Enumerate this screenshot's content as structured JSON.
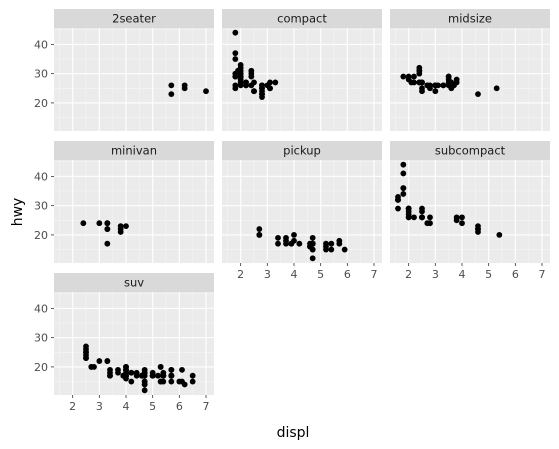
{
  "chart_data": {
    "type": "scatter",
    "facet_by": "class",
    "xlabel": "displ",
    "ylabel": "hwy",
    "xlim": [
      1.3,
      7.3
    ],
    "ylim": [
      10.4,
      45.6
    ],
    "x_ticks": [
      2,
      3,
      4,
      5,
      6,
      7
    ],
    "y_ticks": [
      20,
      30,
      40
    ],
    "grid": true,
    "panels": [
      {
        "label": "2seater",
        "points": [
          [
            5.7,
            26
          ],
          [
            5.7,
            23
          ],
          [
            6.2,
            26
          ],
          [
            6.2,
            25
          ],
          [
            7.0,
            24
          ]
        ]
      },
      {
        "label": "compact",
        "points": [
          [
            1.8,
            29
          ],
          [
            1.8,
            29
          ],
          [
            2.0,
            31
          ],
          [
            2.0,
            30
          ],
          [
            2.8,
            26
          ],
          [
            2.8,
            26
          ],
          [
            3.1,
            27
          ],
          [
            1.8,
            26
          ],
          [
            1.8,
            25
          ],
          [
            2.0,
            28
          ],
          [
            2.0,
            27
          ],
          [
            2.8,
            25
          ],
          [
            2.8,
            25
          ],
          [
            3.1,
            25
          ],
          [
            3.1,
            25
          ],
          [
            2.2,
            26
          ],
          [
            2.2,
            27
          ],
          [
            2.4,
            30
          ],
          [
            2.4,
            31
          ],
          [
            3.0,
            26
          ],
          [
            3.3,
            27
          ],
          [
            1.8,
            44
          ],
          [
            1.8,
            35
          ],
          [
            1.8,
            37
          ],
          [
            2.0,
            29
          ],
          [
            2.0,
            29
          ],
          [
            2.0,
            29
          ],
          [
            2.0,
            28
          ],
          [
            2.5,
            24
          ],
          [
            2.5,
            24
          ],
          [
            2.8,
            23
          ],
          [
            2.8,
            23
          ],
          [
            2.8,
            24
          ],
          [
            2.2,
            26
          ],
          [
            2.4,
            26
          ],
          [
            1.8,
            30
          ],
          [
            2.0,
            33
          ],
          [
            2.0,
            32
          ],
          [
            2.4,
            29
          ],
          [
            1.9,
            31
          ],
          [
            2.2,
            27
          ],
          [
            2.0,
            26
          ],
          [
            2.0,
            30
          ],
          [
            2.8,
            22
          ],
          [
            2.5,
            27
          ]
        ]
      },
      {
        "label": "midsize",
        "points": [
          [
            2.4,
            27
          ],
          [
            2.4,
            30
          ],
          [
            3.1,
            26
          ],
          [
            3.5,
            29
          ],
          [
            3.6,
            26
          ],
          [
            2.4,
            31
          ],
          [
            3.0,
            26
          ],
          [
            3.3,
            26
          ],
          [
            2.5,
            27
          ],
          [
            2.5,
            27
          ],
          [
            3.5,
            27
          ],
          [
            1.8,
            29
          ],
          [
            2.0,
            28
          ],
          [
            2.8,
            25
          ],
          [
            3.6,
            25
          ],
          [
            3.6,
            27
          ],
          [
            2.2,
            29
          ],
          [
            2.4,
            27
          ],
          [
            2.7,
            26
          ],
          [
            2.7,
            26
          ],
          [
            3.5,
            29
          ],
          [
            4.6,
            23
          ],
          [
            5.3,
            25
          ],
          [
            3.0,
            24
          ],
          [
            3.0,
            26
          ],
          [
            3.5,
            28
          ],
          [
            3.5,
            26
          ],
          [
            2.2,
            27
          ],
          [
            2.5,
            25
          ],
          [
            2.4,
            32
          ],
          [
            2.4,
            31
          ],
          [
            3.3,
            26
          ],
          [
            2.5,
            24
          ],
          [
            3.0,
            26
          ],
          [
            3.7,
            26
          ],
          [
            3.0,
            26
          ],
          [
            3.8,
            27
          ],
          [
            3.8,
            28
          ],
          [
            2.0,
            29
          ],
          [
            2.1,
            27
          ],
          [
            2.8,
            26
          ]
        ]
      },
      {
        "label": "minivan",
        "points": [
          [
            2.4,
            24
          ],
          [
            3.0,
            24
          ],
          [
            3.3,
            22
          ],
          [
            3.3,
            22
          ],
          [
            3.3,
            24
          ],
          [
            3.3,
            24
          ],
          [
            3.3,
            17
          ],
          [
            3.8,
            22
          ],
          [
            3.8,
            21
          ],
          [
            3.8,
            23
          ],
          [
            4.0,
            23
          ]
        ]
      },
      {
        "label": "pickup",
        "points": [
          [
            2.7,
            20
          ],
          [
            2.7,
            22
          ],
          [
            3.4,
            17
          ],
          [
            3.4,
            19
          ],
          [
            3.7,
            18
          ],
          [
            3.7,
            17
          ],
          [
            3.9,
            17
          ],
          [
            4.7,
            17
          ],
          [
            4.7,
            12
          ],
          [
            4.7,
            15
          ],
          [
            5.2,
            16
          ],
          [
            5.2,
            15
          ],
          [
            3.9,
            17
          ],
          [
            4.7,
            17
          ],
          [
            4.7,
            15
          ],
          [
            4.7,
            17
          ],
          [
            5.2,
            17
          ],
          [
            5.7,
            17
          ],
          [
            5.9,
            15
          ],
          [
            4.2,
            17
          ],
          [
            4.6,
            17
          ],
          [
            4.6,
            16
          ],
          [
            4.6,
            16
          ],
          [
            5.4,
            15
          ],
          [
            5.4,
            17
          ],
          [
            2.7,
            20
          ],
          [
            4.0,
            20
          ],
          [
            4.0,
            18
          ],
          [
            4.7,
            17
          ],
          [
            4.7,
            19
          ],
          [
            3.7,
            19
          ],
          [
            4.7,
            17
          ],
          [
            5.7,
            18
          ]
        ]
      },
      {
        "label": "subcompact",
        "points": [
          [
            3.8,
            26
          ],
          [
            3.8,
            25
          ],
          [
            4.0,
            26
          ],
          [
            4.0,
            24
          ],
          [
            4.6,
            21
          ],
          [
            4.6,
            22
          ],
          [
            4.6,
            23
          ],
          [
            4.6,
            22
          ],
          [
            5.4,
            20
          ],
          [
            1.6,
            33
          ],
          [
            1.6,
            32
          ],
          [
            1.6,
            32
          ],
          [
            1.6,
            29
          ],
          [
            1.6,
            32
          ],
          [
            1.8,
            34
          ],
          [
            1.8,
            36
          ],
          [
            1.8,
            36
          ],
          [
            2.0,
            29
          ],
          [
            2.0,
            26
          ],
          [
            2.0,
            27
          ],
          [
            2.0,
            29
          ],
          [
            2.5,
            26
          ],
          [
            2.5,
            28
          ],
          [
            2.5,
            26
          ],
          [
            2.5,
            29
          ],
          [
            2.7,
            24
          ],
          [
            1.8,
            44
          ],
          [
            1.8,
            41
          ],
          [
            2.0,
            29
          ],
          [
            2.0,
            26
          ],
          [
            2.0,
            28
          ],
          [
            2.2,
            26
          ],
          [
            2.5,
            26
          ],
          [
            2.8,
            24
          ],
          [
            2.8,
            26
          ]
        ]
      },
      {
        "label": "suv",
        "points": [
          [
            5.7,
            15
          ],
          [
            5.7,
            17
          ],
          [
            6.2,
            14
          ],
          [
            6.5,
            15
          ],
          [
            5.3,
            20
          ],
          [
            5.3,
            15
          ],
          [
            5.7,
            17
          ],
          [
            6.0,
            15
          ],
          [
            5.3,
            20
          ],
          [
            5.3,
            15
          ],
          [
            5.7,
            17
          ],
          [
            6.5,
            17
          ],
          [
            3.7,
            19
          ],
          [
            3.7,
            18
          ],
          [
            3.9,
            17
          ],
          [
            3.9,
            17
          ],
          [
            4.7,
            12
          ],
          [
            4.7,
            17
          ],
          [
            4.7,
            15
          ],
          [
            5.2,
            17
          ],
          [
            5.7,
            19
          ],
          [
            4.0,
            19
          ],
          [
            4.0,
            20
          ],
          [
            4.0,
            19
          ],
          [
            4.6,
            17
          ],
          [
            5.0,
            17
          ],
          [
            5.4,
            15
          ],
          [
            5.4,
            18
          ],
          [
            5.4,
            17
          ],
          [
            3.3,
            22
          ],
          [
            3.3,
            22
          ],
          [
            4.0,
            20
          ],
          [
            4.0,
            18
          ],
          [
            4.7,
            19
          ],
          [
            4.7,
            18
          ],
          [
            5.7,
            17
          ],
          [
            6.1,
            19
          ],
          [
            4.0,
            17
          ],
          [
            4.2,
            18
          ],
          [
            4.4,
            18
          ],
          [
            4.6,
            17
          ],
          [
            5.4,
            17
          ],
          [
            4.0,
            19
          ],
          [
            4.0,
            17
          ],
          [
            4.6,
            17
          ],
          [
            5.0,
            18
          ],
          [
            4.7,
            15
          ],
          [
            4.7,
            14
          ],
          [
            4.7,
            14
          ],
          [
            5.0,
            17
          ],
          [
            5.7,
            19
          ],
          [
            4.2,
            15
          ],
          [
            2.5,
            25
          ],
          [
            2.5,
            24
          ],
          [
            2.5,
            27
          ],
          [
            2.5,
            25
          ],
          [
            2.5,
            26
          ],
          [
            2.5,
            23
          ],
          [
            2.7,
            20
          ],
          [
            2.7,
            20
          ],
          [
            3.4,
            17
          ],
          [
            3.4,
            19
          ],
          [
            4.0,
            16
          ],
          [
            4.7,
            18
          ],
          [
            2.8,
            20
          ],
          [
            3.4,
            17
          ],
          [
            4.0,
            17
          ],
          [
            4.6,
            17
          ],
          [
            5.0,
            17
          ],
          [
            6.1,
            15
          ],
          [
            3.4,
            18
          ],
          [
            4.2,
            18
          ],
          [
            4.4,
            17
          ],
          [
            5.4,
            17
          ],
          [
            2.5,
            23
          ],
          [
            3.0,
            22
          ]
        ]
      }
    ]
  }
}
